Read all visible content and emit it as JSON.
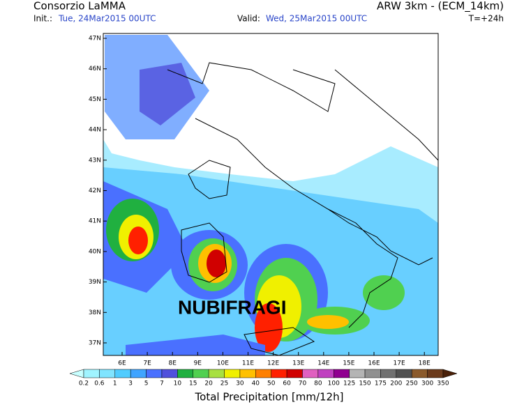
{
  "header": {
    "left_title": "Consorzio LaMMA",
    "right_title": "ARW 3km - (ECM_14km)",
    "init_label": "Init.:",
    "init_value": "Tue, 24Mar2015 00UTC",
    "valid_label": "Valid:",
    "valid_value": "Wed, 25Mar2015 00UTC",
    "forecast_time": "T=+24h"
  },
  "map": {
    "lat_labels": [
      "47N",
      "46N",
      "45N",
      "44N",
      "43N",
      "42N",
      "41N",
      "40N",
      "39N",
      "38N",
      "37N"
    ],
    "lon_labels": [
      "6E",
      "7E",
      "8E",
      "9E",
      "10E",
      "11E",
      "12E",
      "13E",
      "14E",
      "15E",
      "16E",
      "17E",
      "18E"
    ],
    "overlay_text": "NUBIFRAGI"
  },
  "colorbar": {
    "title": "Total Precipitation [mm/12h]",
    "labels": [
      0.2,
      0.6,
      1,
      3,
      5,
      7,
      10,
      15,
      20,
      25,
      30,
      40,
      50,
      60,
      70,
      80,
      100,
      125,
      150,
      175,
      200,
      250,
      300,
      350
    ],
    "colors": [
      "#c8ffff",
      "#a0f4ff",
      "#80e4ff",
      "#50ccff",
      "#40a4ff",
      "#4a70ff",
      "#5050dc",
      "#20b040",
      "#50d050",
      "#a8e040",
      "#f0f000",
      "#ffc000",
      "#ff8000",
      "#ff2000",
      "#d00000",
      "#e060c0",
      "#c040c0",
      "#900090",
      "#b4b4b4",
      "#909090",
      "#707070",
      "#505050",
      "#8b5a2b",
      "#6b3a1b",
      "#4a2008"
    ]
  }
}
